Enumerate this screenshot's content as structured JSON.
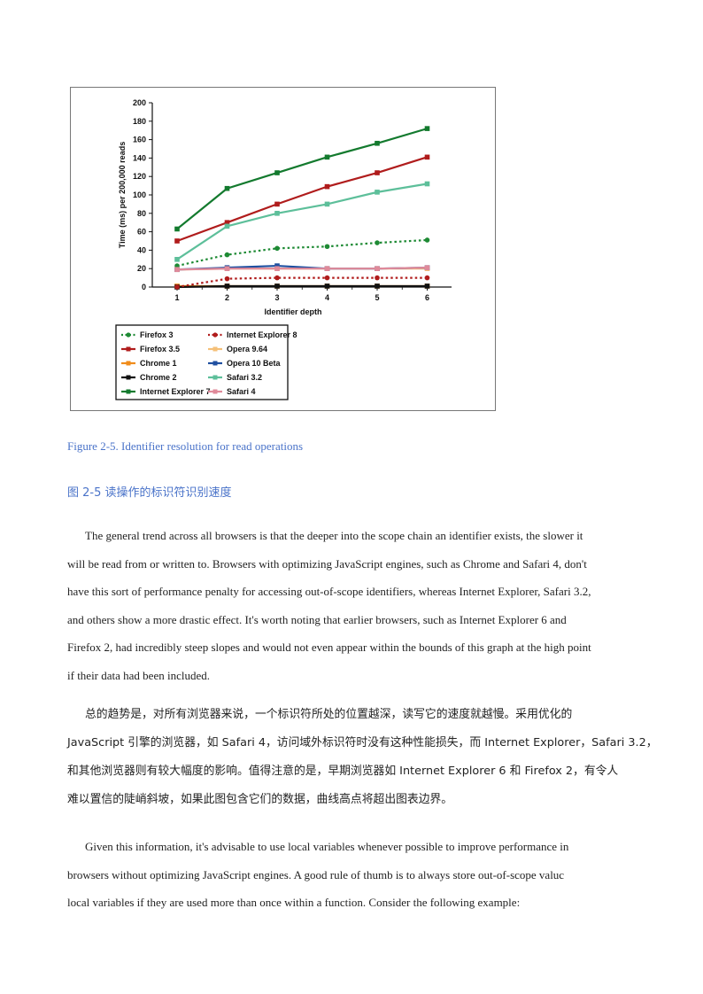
{
  "chart_data": {
    "type": "line",
    "xlabel": "Identifier depth",
    "ylabel": "Time (ms) per 200,000 reads",
    "x": [
      1,
      2,
      3,
      4,
      5,
      6
    ],
    "ylim": [
      0,
      200
    ],
    "yticks": [
      0,
      20,
      40,
      60,
      80,
      100,
      120,
      140,
      160,
      180,
      200
    ],
    "grid": false,
    "legend_position": "bottom-left",
    "series": [
      {
        "name": "Firefox 3",
        "color": "#1e8a34",
        "dashed": true,
        "values": [
          23,
          35,
          42,
          44,
          48,
          51
        ]
      },
      {
        "name": "Firefox 3.5",
        "color": "#b01c1c",
        "dashed": false,
        "values": [
          50,
          70,
          90,
          109,
          124,
          141
        ]
      },
      {
        "name": "Chrome 1",
        "color": "#f08c1a",
        "dashed": false,
        "values": [
          1,
          1,
          1,
          1,
          1,
          1
        ]
      },
      {
        "name": "Chrome 2",
        "color": "#111111",
        "dashed": false,
        "values": [
          0,
          1,
          1,
          1,
          1,
          1
        ]
      },
      {
        "name": "Internet Explorer 7",
        "color": "#137a2e",
        "dashed": false,
        "values": [
          63,
          107,
          124,
          141,
          156,
          172
        ]
      },
      {
        "name": "Internet Explorer 8",
        "color": "#b01c1c",
        "dashed": true,
        "values": [
          0,
          9,
          10,
          10,
          10,
          10
        ]
      },
      {
        "name": "Opera 9.64",
        "color": "#f5c078",
        "dashed": false,
        "values": [
          19,
          20,
          20,
          20,
          20,
          20
        ]
      },
      {
        "name": "Opera 10 Beta",
        "color": "#1f4fa0",
        "dashed": false,
        "values": [
          19,
          21,
          23,
          20,
          20,
          21
        ]
      },
      {
        "name": "Safari 3.2",
        "color": "#5dbf9a",
        "dashed": false,
        "values": [
          30,
          66,
          80,
          90,
          103,
          112
        ]
      },
      {
        "name": "Safari 4",
        "color": "#e08a9a",
        "dashed": false,
        "values": [
          19,
          20,
          20,
          20,
          20,
          21
        ]
      }
    ]
  },
  "caption_en": "Figure 2-5. Identifier resolution for read operations",
  "caption_zh": "图 2-5   读操作的标识符识别速度",
  "paragraph1": [
    "The general trend across all browsers is that the deeper into the scope chain an identifier exists, the slower it",
    "will be read from or written to. Browsers with optimizing JavaScript engines, such as Chrome and Safari 4, don't",
    "have this sort of performance penalty for accessing out-of-scope identifiers, whereas Internet Explorer, Safari 3.2,",
    "and others show a more drastic effect. It's worth noting that earlier browsers, such as Internet Explorer 6 and",
    "Firefox 2, had incredibly steep slopes and would not even appear within the bounds of this graph at the high point",
    "if their data had been included."
  ],
  "paragraph2": [
    "总的趋势是，对所有浏览器来说，一个标识符所处的位置越深，读写它的速度就越慢。采用优化的",
    "JavaScript 引擎的浏览器，如 Safari 4，访问域外标识符时没有这种性能损失，而 Internet Explorer，Safari 3.2，",
    "和其他浏览器则有较大幅度的影响。值得注意的是，早期浏览器如 Internet Explorer 6 和 Firefox 2，有令人",
    "难以置信的陡峭斜坡，如果此图包含它们的数据，曲线高点将超出图表边界。"
  ],
  "paragraph3": [
    "Given this information, it's advisable to use local variables whenever possible to improve performance in",
    "browsers without optimizing JavaScript engines. A good rule of thumb is to always store out-of-scope valuc",
    "local variables if they are used more than once within a function. Consider the following example:"
  ]
}
